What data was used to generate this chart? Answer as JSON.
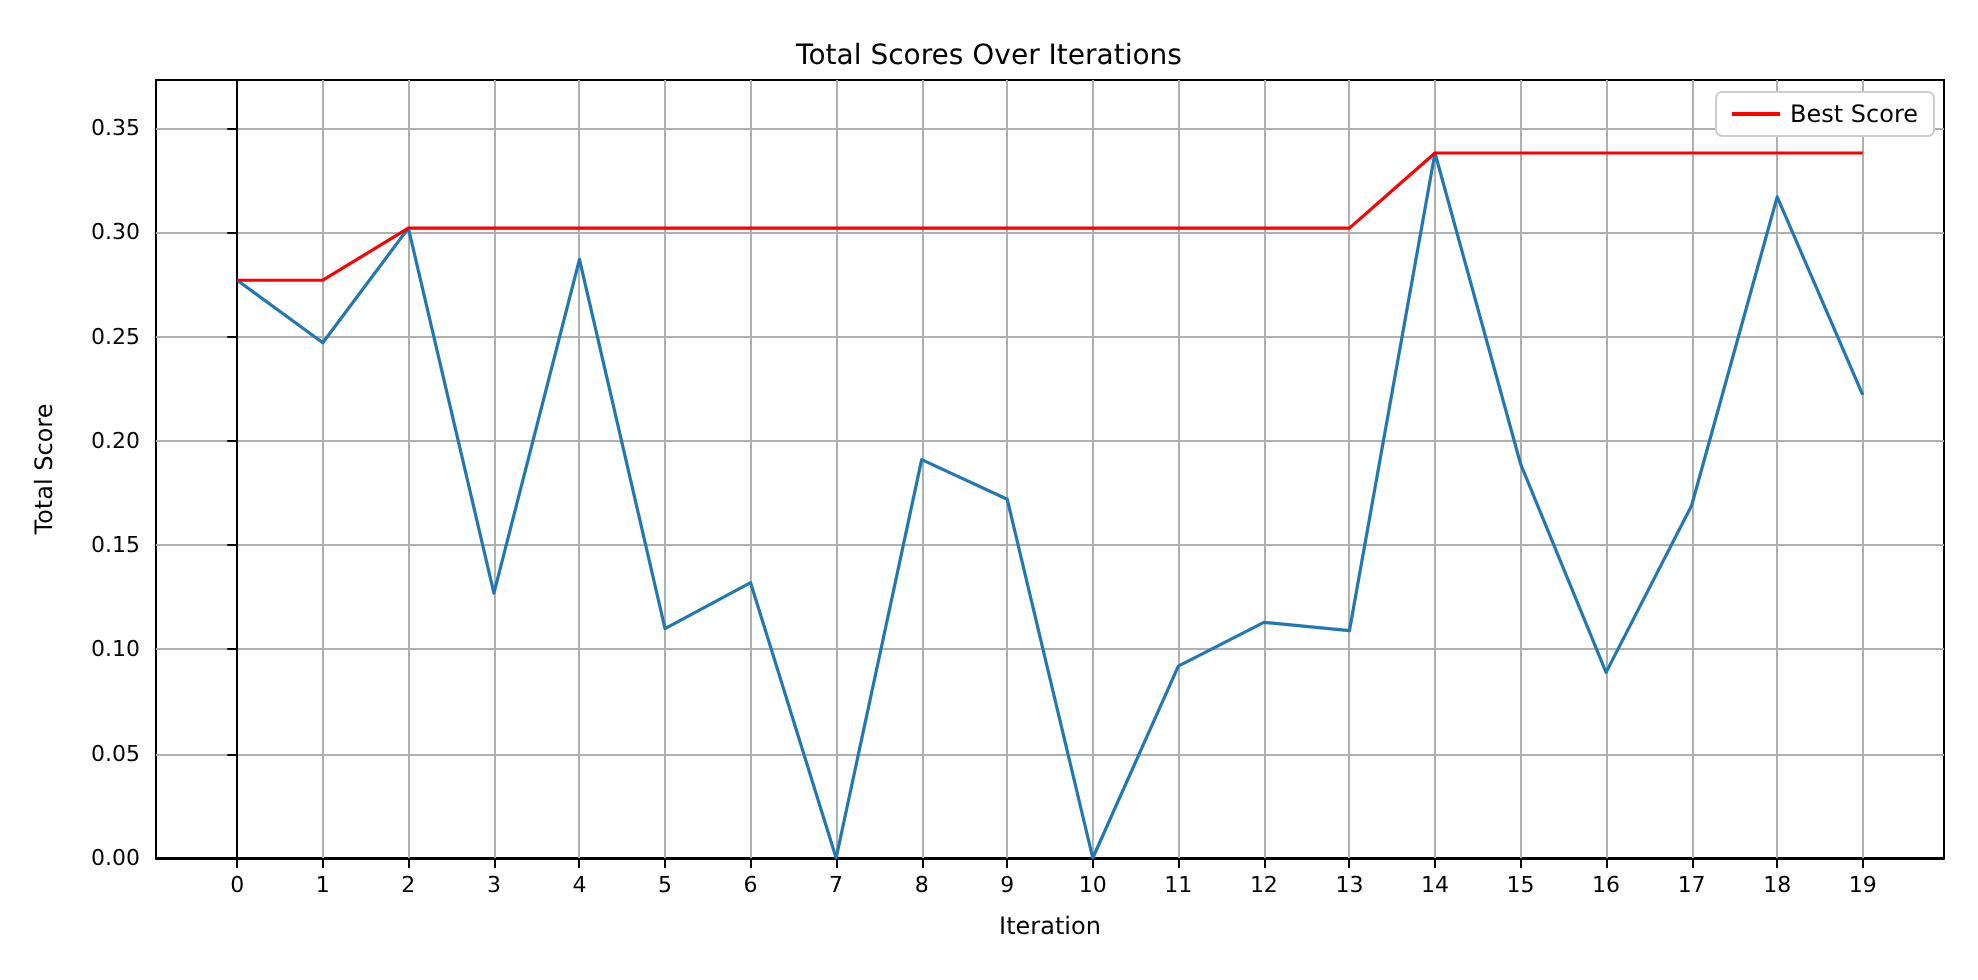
{
  "chart_data": {
    "type": "line",
    "title": "Total Scores Over Iterations",
    "xlabel": "Iteration",
    "ylabel": "Total Score",
    "x": [
      0,
      1,
      2,
      3,
      4,
      5,
      6,
      7,
      8,
      9,
      10,
      11,
      12,
      13,
      14,
      15,
      16,
      17,
      18,
      19
    ],
    "series": [
      {
        "color": "#1f77b4",
        "values": [
          0.277,
          0.247,
          0.302,
          0.127,
          0.287,
          0.11,
          0.132,
          0,
          0.191,
          0.172,
          0,
          0.092,
          0.113,
          0.109,
          0.338,
          0.189,
          0.089,
          0.169,
          0.317,
          0.222
        ]
      },
      {
        "name": "Best Score",
        "color": "#ff0000",
        "values": [
          0.277,
          0.277,
          0.302,
          0.302,
          0.302,
          0.302,
          0.302,
          0.302,
          0.302,
          0.302,
          0.302,
          0.302,
          0.302,
          0.302,
          0.338,
          0.338,
          0.338,
          0.338,
          0.338,
          0.338
        ]
      }
    ],
    "xlim": [
      -0.95,
      19.95
    ],
    "xticks": [
      0,
      1,
      2,
      3,
      4,
      5,
      6,
      7,
      8,
      9,
      10,
      11,
      12,
      13,
      14,
      15,
      16,
      17,
      18,
      19
    ],
    "ylim": [
      0,
      0.373
    ],
    "yticks": [
      {
        "value": 0,
        "label": "0.00"
      },
      {
        "value": 0.05,
        "label": "0.05"
      },
      {
        "value": 0.1,
        "label": "0.10"
      },
      {
        "value": 0.15,
        "label": "0.15"
      },
      {
        "value": 0.2,
        "label": "0.20"
      },
      {
        "value": 0.25,
        "label": "0.25"
      },
      {
        "value": 0.3,
        "label": "0.30"
      },
      {
        "value": 0.35,
        "label": "0.35"
      }
    ],
    "grid": true,
    "legend": "top right"
  }
}
